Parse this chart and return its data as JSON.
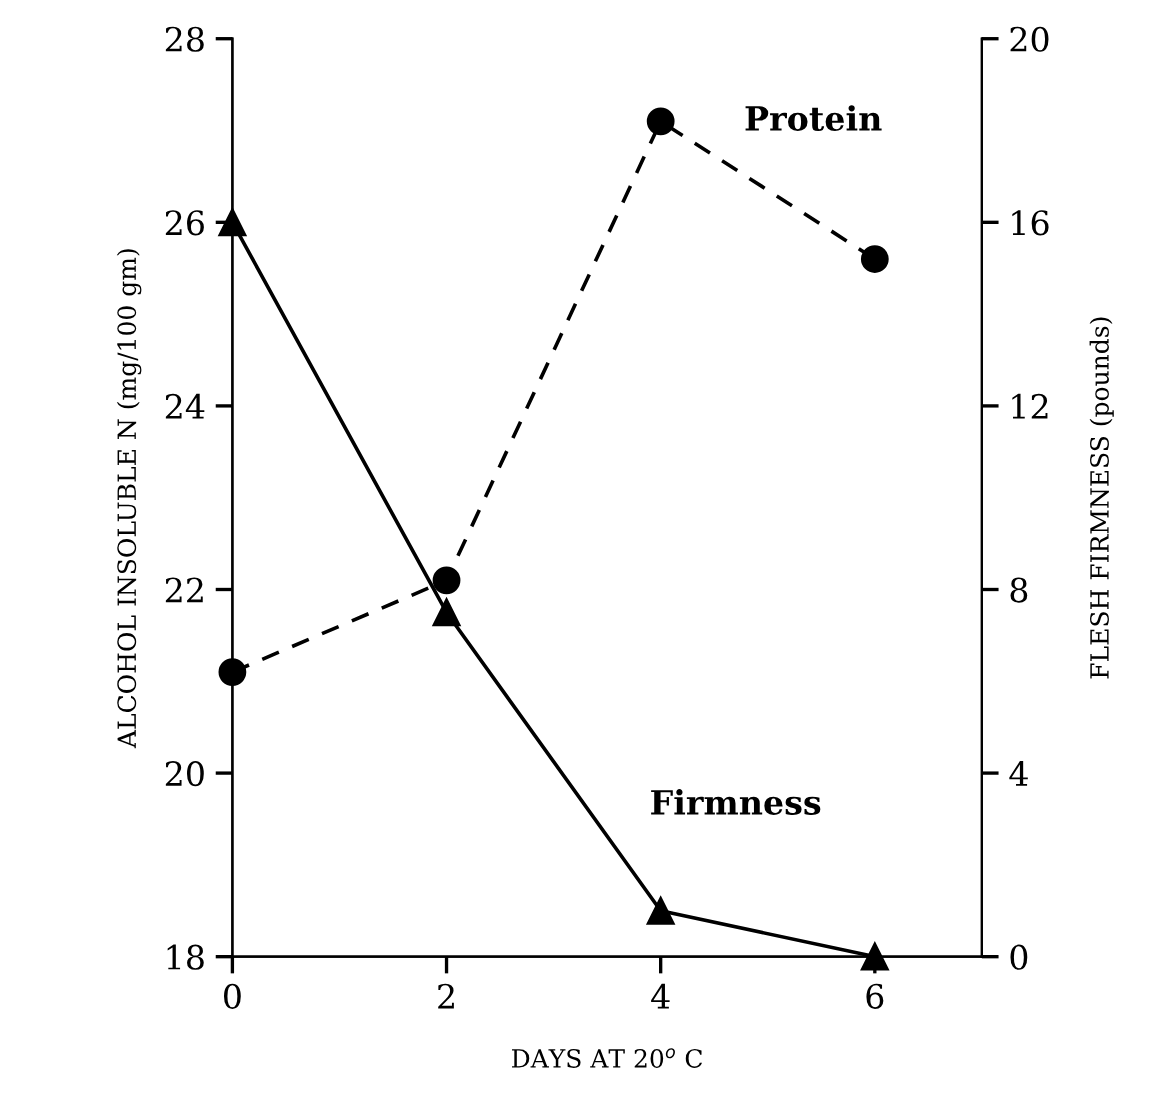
{
  "chart_data": {
    "type": "line",
    "xlabel": "DAYS AT 20$^{o}$ C",
    "ylabel": "ALCOHOL INSOLUBLE N (mg/100 gm)",
    "y2label": "FLESH FIRMNESS (pounds)",
    "x": [
      0,
      2,
      4,
      6
    ],
    "xlim": [
      0,
      7
    ],
    "xticks": [
      0,
      2,
      4,
      6
    ],
    "ylim": [
      18,
      28
    ],
    "yticks": [
      18,
      20,
      22,
      24,
      26,
      28
    ],
    "y2lim": [
      0,
      20
    ],
    "y2ticks": [
      0,
      4,
      8,
      12,
      16,
      20
    ],
    "grid": false,
    "legend": false,
    "series": [
      {
        "name": "Protein",
        "color": "#000000",
        "values": [
          21.1,
          22.1,
          27.1,
          25.6
        ],
        "marker": "circle",
        "line_style": "dashed"
      },
      {
        "name": "Firmness",
        "color": "#000000",
        "values": [
          16,
          7.5,
          1.0,
          0
        ],
        "marker": "triangle",
        "line_style": "solid",
        "axis": "y2"
      }
    ]
  }
}
